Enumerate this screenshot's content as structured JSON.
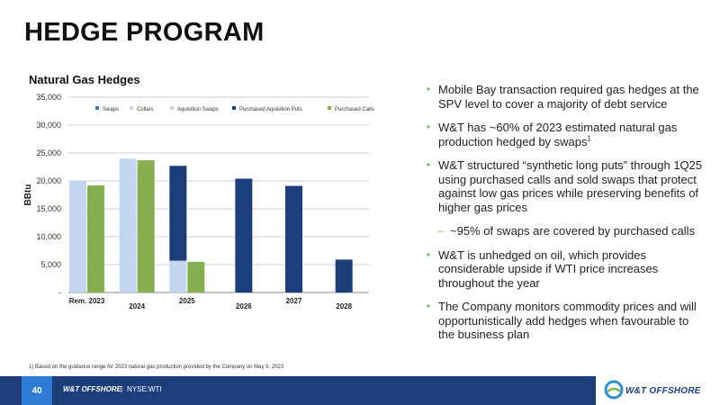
{
  "slide": {
    "title": "HEDGE PROGRAM",
    "bullets": [
      {
        "text": "Mobile Bay transaction required gas hedges at the SPV level to cover a majority of debt service",
        "level": 1
      },
      {
        "text": "W&T has ~60% of 2023 estimated natural gas production hedged by swaps",
        "sup": "1",
        "level": 1
      },
      {
        "text": "W&T structured “synthetic long puts” through 1Q25 using purchased calls and sold swaps that protect against low gas prices while preserving benefits of higher gas prices",
        "level": 1
      },
      {
        "text": "~95% of swaps are covered by purchased calls",
        "level": 2
      },
      {
        "text": "W&T is unhedged on oil, which provides considerable upside if WTI price increases throughout the year",
        "level": 1
      },
      {
        "text": "The Company monitors commodity prices and will opportunistically add hedges when favourable to the business plan",
        "level": 1
      }
    ],
    "footnote": "1)   Based on the guidance range for 2023 natural gas production provided by the Company on May 9, 2023"
  },
  "footer": {
    "page": "40",
    "company": "W&T OFFSHORE",
    "separator": "|",
    "ticker": "NYSE:WTI",
    "logo_text": "W&T OFFSHORE"
  },
  "colors": {
    "Swaps": "#2e75d0",
    "Collars": "#c3d6ef",
    "Aquisition Swaps": "#c3d6ef",
    "Purchased Aquisition Puts": "#1c3f7c",
    "Purchased Calls": "#86b04f"
  },
  "chart_data": {
    "type": "bar",
    "title": "Natural Gas Hedges",
    "ylabel": "BBtu",
    "xlabel": "",
    "ylim": [
      0,
      35000
    ],
    "yticks": [
      0,
      5000,
      10000,
      15000,
      20000,
      25000,
      30000,
      35000
    ],
    "ytick_labels": [
      "-",
      "5,000",
      "10,000",
      "15,000",
      "20,000",
      "25,000",
      "30,000",
      "35,000"
    ],
    "grid": true,
    "legend_position": "top",
    "legend": [
      "Swaps",
      "Collars",
      "Aquisition Swaps",
      "Purchased Aquisition Puts",
      "Purchased Calls"
    ],
    "categories": [
      "Rem. 2023",
      "2024",
      "2025",
      "2026",
      "2027",
      "2028"
    ],
    "groups": [
      {
        "category": "Rem. 2023",
        "bars": [
          {
            "stack": [
              {
                "series": "Aquisition Swaps",
                "value": 20000
              }
            ]
          },
          {
            "stack": [
              {
                "series": "Purchased Calls",
                "value": 19200
              }
            ]
          }
        ]
      },
      {
        "category": "2024",
        "bars": [
          {
            "stack": [
              {
                "series": "Aquisition Swaps",
                "value": 24000
              }
            ]
          },
          {
            "stack": [
              {
                "series": "Purchased Calls",
                "value": 23700
              }
            ]
          }
        ]
      },
      {
        "category": "2025",
        "bars": [
          {
            "stack": [
              {
                "series": "Aquisition Swaps",
                "value": 5700
              },
              {
                "series": "Purchased Aquisition Puts",
                "value": 17000
              }
            ]
          },
          {
            "stack": [
              {
                "series": "Purchased Calls",
                "value": 5500
              }
            ]
          }
        ]
      },
      {
        "category": "2026",
        "bars": [
          {
            "stack": [
              {
                "series": "Purchased Aquisition Puts",
                "value": 20400
              }
            ]
          }
        ]
      },
      {
        "category": "2027",
        "bars": [
          {
            "stack": [
              {
                "series": "Purchased Aquisition Puts",
                "value": 19100
              }
            ]
          }
        ]
      },
      {
        "category": "2028",
        "bars": [
          {
            "stack": [
              {
                "series": "Purchased Aquisition Puts",
                "value": 5900
              }
            ]
          }
        ]
      }
    ]
  }
}
